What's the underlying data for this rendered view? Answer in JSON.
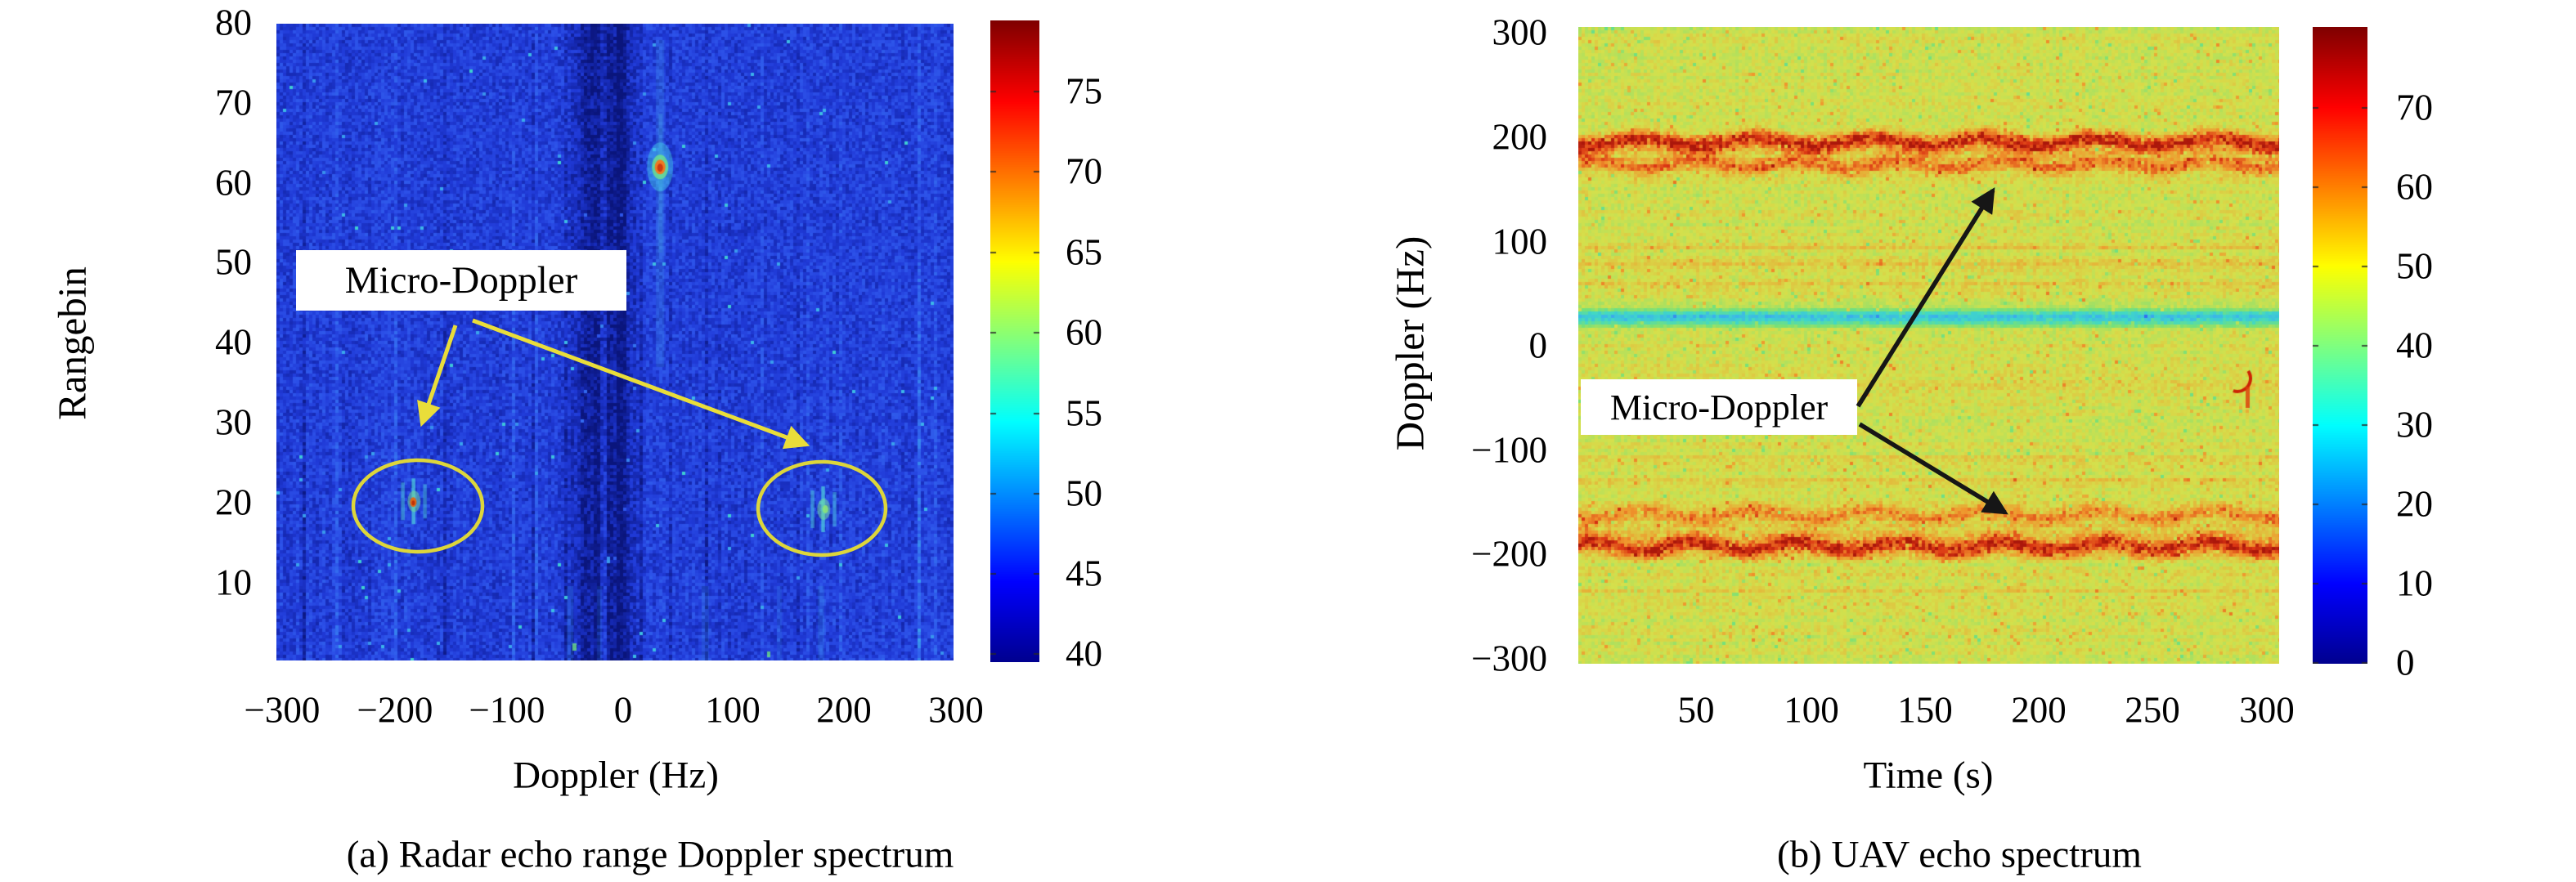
{
  "panels": [
    {
      "caption": "(a) Radar echo range Doppler spectrum",
      "xlabel": "Doppler (Hz)",
      "ylabel": "Rangebin",
      "annotation": "Micro-Doppler",
      "x_ticks": [
        "−300",
        "−200",
        "−100",
        "0",
        "100",
        "200",
        "300"
      ],
      "y_ticks": [
        "80",
        "70",
        "60",
        "50",
        "40",
        "30",
        "20",
        "10"
      ],
      "colorbar_ticks": [
        "75",
        "70",
        "65",
        "60",
        "55",
        "50",
        "45",
        "40"
      ]
    },
    {
      "caption": "(b) UAV echo spectrum",
      "xlabel": "Time (s)",
      "ylabel": "Doppler (Hz)",
      "annotation": "Micro-Doppler",
      "x_ticks": [
        "50",
        "100",
        "150",
        "200",
        "250",
        "300"
      ],
      "y_ticks": [
        "300",
        "200",
        "100",
        "0",
        "−100",
        "−200",
        "−300"
      ],
      "colorbar_ticks": [
        "70",
        "60",
        "50",
        "40",
        "30",
        "20",
        "10",
        "0"
      ]
    }
  ],
  "chart_data": [
    {
      "type": "heatmap",
      "title": "(a) Radar echo range Doppler spectrum",
      "xlabel": "Doppler (Hz)",
      "ylabel": "Rangebin",
      "xlim": [
        -300,
        300
      ],
      "ylim": [
        0,
        80
      ],
      "grid": false,
      "colormap": "jet",
      "colorbar": {
        "range": [
          40,
          79
        ],
        "ticks": [
          75,
          70,
          65,
          60,
          55,
          50,
          45,
          40
        ]
      },
      "background_level_db": 46,
      "features": [
        {
          "name": "zero-doppler-clutter-notch",
          "kind": "vertical-band",
          "doppler_hz": [
            -34,
            12
          ],
          "rangebin": [
            0,
            80
          ],
          "level_db": 41
        },
        {
          "name": "strong-target-echo",
          "kind": "spot",
          "doppler_hz": 40,
          "rangebin": 62,
          "level_db": 76
        },
        {
          "name": "micro-doppler-return-left",
          "kind": "spot-cluster",
          "doppler_hz": -178,
          "rangebin": 20,
          "level_db": 57,
          "circled": true
        },
        {
          "name": "micro-doppler-return-right",
          "kind": "spot-cluster",
          "doppler_hz": 185,
          "rangebin": 19,
          "level_db": 55,
          "circled": true
        }
      ],
      "annotations": [
        {
          "text": "Micro-Doppler",
          "points_to": [
            [
              -178,
              24
            ],
            [
              185,
              23
            ]
          ]
        }
      ]
    },
    {
      "type": "heatmap",
      "title": "(b) UAV echo spectrum",
      "xlabel": "Time (s)",
      "ylabel": "Doppler (Hz)",
      "xlim": [
        0,
        305
      ],
      "ylim": [
        -300,
        300
      ],
      "grid": false,
      "colormap": "jet",
      "colorbar": {
        "range": [
          0,
          79
        ],
        "ticks": [
          70,
          60,
          50,
          40,
          30,
          20,
          10,
          0
        ]
      },
      "background_level_db": 45,
      "features": [
        {
          "name": "uav-body-doppler-line-positive",
          "kind": "horizontal-line",
          "doppler_hz": 193,
          "time_s": [
            0,
            305
          ],
          "level_db": 69
        },
        {
          "name": "uav-harmonic-line-positive",
          "kind": "horizontal-line",
          "doppler_hz": 172,
          "time_s": [
            0,
            305
          ],
          "level_db": 60
        },
        {
          "name": "uav-body-doppler-line-negative",
          "kind": "horizontal-line",
          "doppler_hz": -188,
          "time_s": [
            0,
            305
          ],
          "level_db": 69
        },
        {
          "name": "uav-harmonic-line-negative",
          "kind": "horizontal-line",
          "doppler_hz": -158,
          "time_s": [
            0,
            305
          ],
          "level_db": 59
        },
        {
          "name": "zero-doppler-notch",
          "kind": "horizontal-band",
          "doppler_hz": 0,
          "time_s": [
            0,
            305
          ],
          "level_db": 25
        }
      ],
      "annotations": [
        {
          "text": "Micro-Doppler",
          "points_to": [
            [
              178,
              155
            ],
            [
              182,
              -165
            ]
          ]
        }
      ]
    }
  ],
  "colors": {
    "annotation_arrow_a": "#e9dd3a",
    "annotation_ellipse_a": "#ddd63b",
    "annotation_arrow_b": "#161616",
    "annotation_box_bg": "#ffffff"
  }
}
